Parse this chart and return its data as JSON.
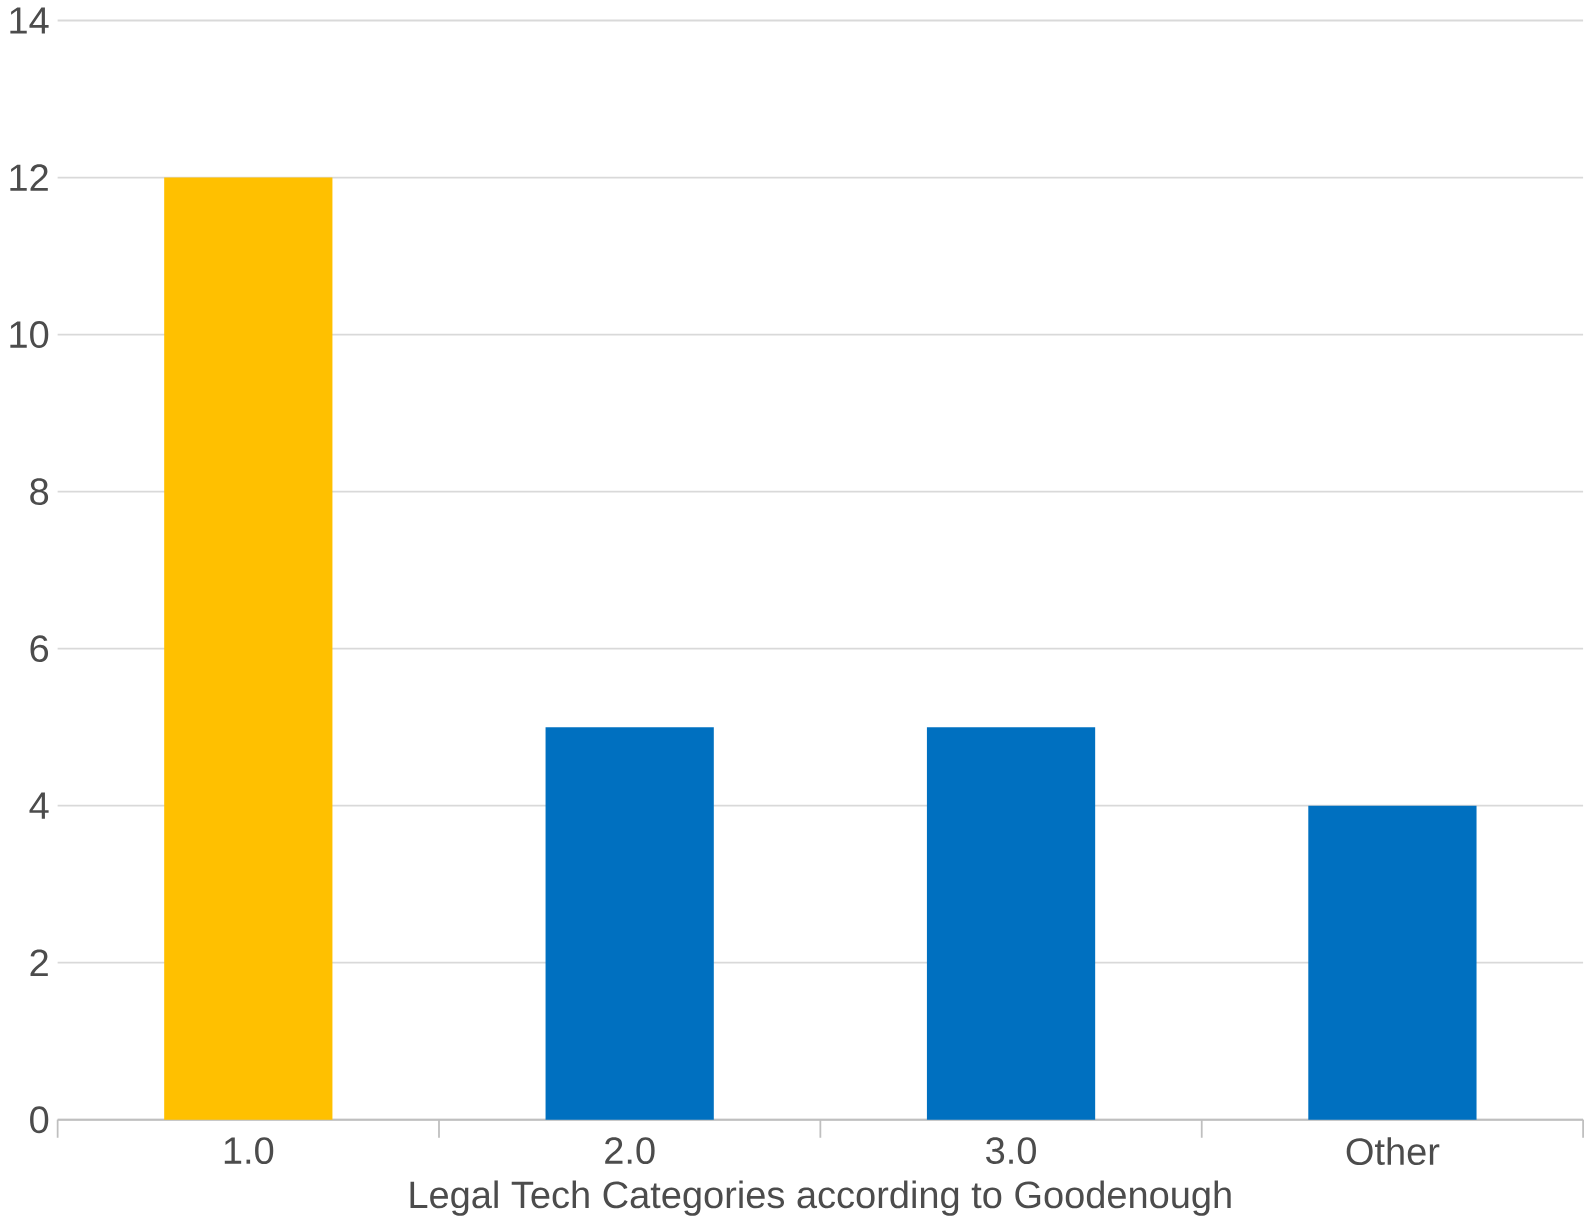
{
  "chart_data": {
    "type": "bar",
    "xlabel": "Legal Tech Categories according to Goodenough",
    "categories": [
      "1.0",
      "2.0",
      "3.0",
      "Other"
    ],
    "values": [
      12,
      5,
      5,
      4
    ],
    "colors": [
      "#ffc000",
      "#0070c0",
      "#0070c0",
      "#0070c0"
    ],
    "ylim": [
      0,
      14
    ],
    "yticks": [
      0,
      2,
      4,
      6,
      8,
      10,
      12,
      14
    ],
    "grid": "y"
  }
}
